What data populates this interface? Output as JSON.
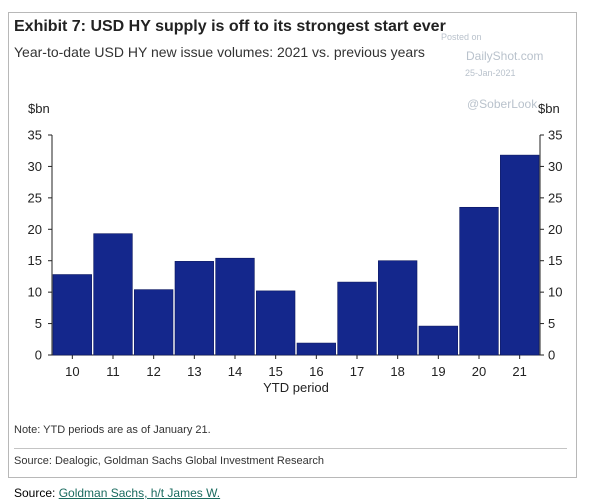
{
  "exhibit": {
    "title": "Exhibit 7: USD HY supply is off to its strongest start ever",
    "subtitle": "Year-to-date USD HY new issue volumes: 2021 vs. previous years",
    "note": "Note: YTD periods are as of January 21.",
    "source": "Source: Dealogic, Goldman Sachs Global Investment Research"
  },
  "watermark": {
    "posted": "Posted on",
    "site": "DailyShot.com",
    "date": "25-Jan-2021",
    "handle": "@SoberLook"
  },
  "caption": {
    "prefix": "Source:",
    "link_text": "Goldman Sachs, h/t James W."
  },
  "colors": {
    "bar": "#14278c",
    "bar_edge": "#0a1660",
    "axis": "#222222",
    "watermark": "#b9c2cc",
    "link": "#1a6b5f"
  },
  "chart_data": {
    "type": "bar",
    "categories": [
      "10",
      "11",
      "12",
      "13",
      "14",
      "15",
      "16",
      "17",
      "18",
      "19",
      "20",
      "21"
    ],
    "values": [
      12.8,
      19.3,
      10.4,
      14.9,
      15.4,
      10.2,
      1.9,
      11.6,
      15.0,
      4.6,
      23.5,
      31.8
    ],
    "xlabel": "YTD period",
    "ylabel_left": "$bn",
    "ylabel_right": "$bn",
    "ylim": [
      0,
      35
    ],
    "yticks": [
      0,
      5,
      10,
      15,
      20,
      25,
      30,
      35
    ],
    "grid": false,
    "legend": "none"
  }
}
